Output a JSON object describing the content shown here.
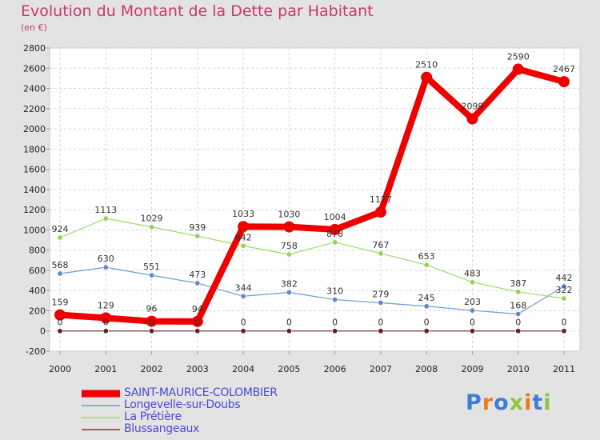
{
  "chart_data": {
    "type": "line",
    "title": "Evolution du Montant de la Dette par Habitant",
    "subtitle": "(en €)",
    "xlabel": "",
    "ylabel": "",
    "categories": [
      "2000",
      "2001",
      "2002",
      "2003",
      "2004",
      "2005",
      "2006",
      "2007",
      "2008",
      "2009",
      "2010",
      "2011"
    ],
    "ylim": [
      -200,
      2800
    ],
    "yticks": [
      "-200",
      "0",
      "200",
      "400",
      "600",
      "800",
      "1000",
      "1200",
      "1400",
      "1600",
      "1800",
      "2000",
      "2200",
      "2400",
      "2600",
      "2800"
    ],
    "grid": true,
    "legend_position": "bottom-left",
    "series": [
      {
        "name": "SAINT-MAURICE-COLOMBIER",
        "color": "#ee0000",
        "values": [
          159,
          129,
          96,
          94,
          1033,
          1030,
          1004,
          1177,
          2510,
          2099,
          2590,
          2467
        ]
      },
      {
        "name": "Longevelle-sur-Doubs",
        "color": "#6a9fd0",
        "values": [
          568,
          630,
          551,
          473,
          344,
          382,
          310,
          279,
          245,
          203,
          168,
          442
        ]
      },
      {
        "name": "La Prétière",
        "color": "#99dd66",
        "values": [
          924,
          1113,
          1029,
          939,
          842,
          758,
          878,
          767,
          653,
          483,
          387,
          322
        ]
      },
      {
        "name": "Blussangeaux",
        "color": "#7a3a3a",
        "values": [
          0,
          0,
          0,
          0,
          0,
          0,
          0,
          0,
          0,
          0,
          0,
          0
        ]
      }
    ],
    "data_labels": [
      [
        "159",
        "129",
        "96",
        "94",
        "1033",
        "1030",
        "1004",
        "1177",
        "2510",
        "2099",
        "2590",
        "2467"
      ],
      [
        "568",
        "630",
        "551",
        "473",
        "344",
        "382",
        "310",
        "279",
        "245",
        "203",
        "168",
        "442"
      ],
      [
        "924",
        "1113",
        "1029",
        "939",
        "842",
        "758",
        "878",
        "767",
        "653",
        "483",
        "387",
        "322"
      ],
      [
        "0",
        "0",
        "0",
        "0",
        "0",
        "0",
        "0",
        "0",
        "0",
        "0",
        "0",
        "0"
      ]
    ]
  },
  "logo": {
    "text": "Proxiti",
    "colors": [
      "#3b7fd4",
      "#f07a1a",
      "#3b7fd4",
      "#8cc63f",
      "#f07a1a",
      "#3b7fd4",
      "#8cc63f"
    ]
  }
}
